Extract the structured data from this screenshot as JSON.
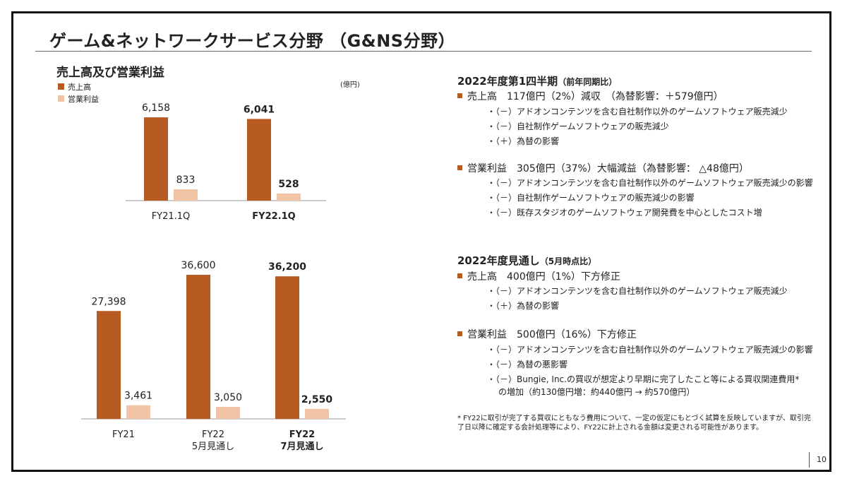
{
  "title": "ゲーム&ネットワークサービス分野 （G&NS分野）",
  "section_title": "売上高及び営業利益",
  "unit": "(億円)",
  "colors": {
    "sales": "#b85b22",
    "op_income": "#f0c4a4",
    "bullet": "#b85b22"
  },
  "chart_data": [
    {
      "type": "bar",
      "categories": [
        [
          "FY21.1Q"
        ],
        [
          "FY22.1Q"
        ]
      ],
      "categories_bold": [
        false,
        true
      ],
      "series": [
        {
          "name": "売上高",
          "values": [
            6158,
            6041
          ],
          "labels": [
            "6,158",
            "6,041"
          ]
        },
        {
          "name": "営業利益",
          "values": [
            833,
            528
          ],
          "labels": [
            "833",
            "528"
          ]
        }
      ],
      "ylim": [
        0,
        7000
      ]
    },
    {
      "type": "bar",
      "categories": [
        [
          "FY21"
        ],
        [
          "FY22",
          "5月見通し"
        ],
        [
          "FY22",
          "7月見通し"
        ]
      ],
      "categories_bold": [
        false,
        false,
        true
      ],
      "series": [
        {
          "name": "売上高",
          "values": [
            27398,
            36600,
            36200
          ],
          "labels": [
            "27,398",
            "36,600",
            "36,200"
          ]
        },
        {
          "name": "営業利益",
          "values": [
            3461,
            3050,
            2550
          ],
          "labels": [
            "3,461",
            "3,050",
            "2,550"
          ]
        }
      ],
      "ylim": [
        0,
        40000
      ]
    }
  ],
  "right": {
    "q1_title": "2022年度第1四半期",
    "q1_note": "（前年同期比）",
    "q1_sales": "売上高　117億円（2%）減収　（為替影響：＋579億円）",
    "q1_sales_items": [
      "・（－）アドオンコンテンツを含む自社制作以外のゲームソフトウェア販売減少",
      "・（－）自社制作ゲームソフトウェアの販売減少",
      "・（＋）為替の影響"
    ],
    "q1_op": "営業利益　305億円（37%）大幅減益（為替影響：  △48億円）",
    "q1_op_items": [
      "・（－）アドオンコンテンツを含む自社制作以外のゲームソフトウェア販売減少の影響",
      "・（－）自社制作ゲームソフトウェアの販売減少の影響",
      "・（－）既存スタジオのゲームソフトウェア開発費を中心としたコスト増"
    ],
    "fy_title": "2022年度見通し",
    "fy_note": "（5月時点比）",
    "fy_sales": "売上高　400億円（1%）下方修正",
    "fy_sales_items": [
      "・（－）アドオンコンテンツを含む自社制作以外のゲームソフトウェア販売減少",
      "・（＋）為替の影響"
    ],
    "fy_op": "営業利益　500億円（16%）下方修正",
    "fy_op_items": [
      "・（－）アドオンコンテンツを含む自社制作以外のゲームソフトウェア販売減少の影響",
      "・（－）為替の悪影響",
      "・（－）Bungie, Inc.の買収が想定より早期に完了したこと等による買収関連費用*"
    ],
    "fy_op_cont": "の増加（約130億円増：約440億円 → 約570億円）"
  },
  "footnote": "* FY22に取引が完了する買収にともなう費用について、一定の仮定にもとづく試算を反映していますが、取引完了日以降に確定する会計処理等により、FY22に計上される金額は変更される可能性があります。",
  "page_number": "10"
}
